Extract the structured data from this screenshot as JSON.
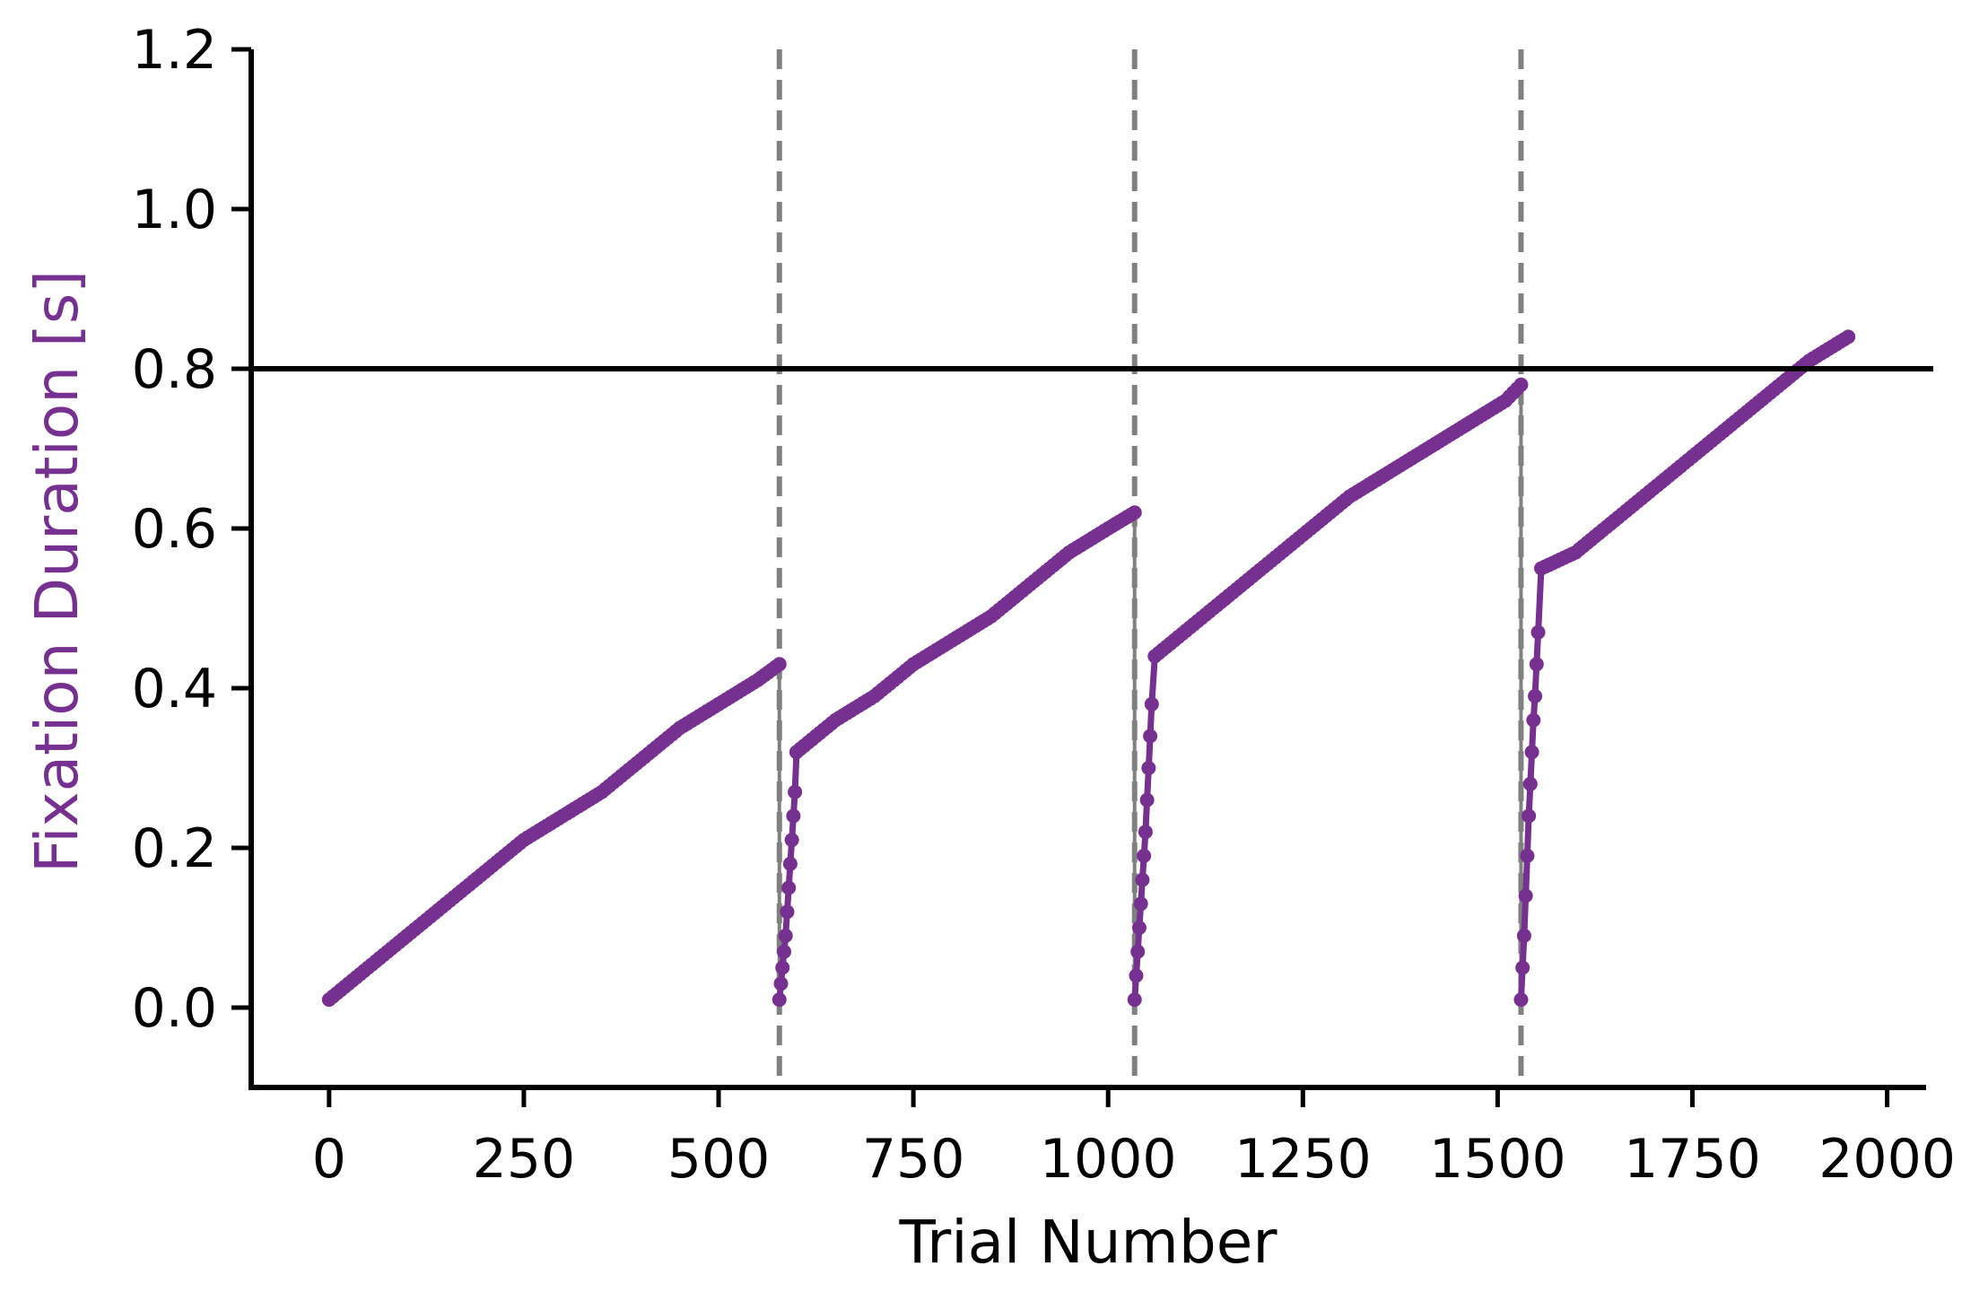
{
  "chart_data": {
    "type": "line",
    "xlabel": "Trial Number",
    "ylabel": "Fixation Duration [s]",
    "xlim": [
      -100,
      2050
    ],
    "ylim": [
      -0.1,
      1.2
    ],
    "xticks": [
      0,
      250,
      500,
      750,
      1000,
      1250,
      1500,
      1750,
      2000
    ],
    "yticks": [
      0.0,
      0.2,
      0.4,
      0.6,
      0.8,
      1.0,
      1.2
    ],
    "x_tick_labels": [
      "0",
      "250",
      "500",
      "750",
      "1000",
      "1250",
      "1500",
      "1750",
      "2000"
    ],
    "y_tick_labels": [
      "0.0",
      "0.2",
      "0.4",
      "0.6",
      "0.8",
      "1.0",
      "1.2"
    ],
    "grid": false,
    "threshold_line": {
      "y": 0.8,
      "color": "#000000"
    },
    "block_boundaries": {
      "x": [
        578,
        1034,
        1530
      ],
      "color": "#808080",
      "style": "dashed"
    },
    "series": [
      {
        "color": "#76308f",
        "segments": [
          {
            "x": [
              0,
              50,
              100,
              150,
              200,
              250,
              300,
              350,
              400,
              450,
              500,
              550,
              578
            ],
            "y": [
              0.01,
              0.05,
              0.09,
              0.13,
              0.17,
              0.21,
              0.24,
              0.27,
              0.31,
              0.35,
              0.38,
              0.41,
              0.43
            ]
          },
          {
            "x": [
              578,
              580,
              582,
              584,
              586,
              588,
              590,
              592,
              594,
              596,
              598,
              600,
              650,
              700,
              750,
              800,
              850,
              900,
              950,
              1000,
              1034
            ],
            "y": [
              0.01,
              0.03,
              0.05,
              0.07,
              0.09,
              0.12,
              0.15,
              0.18,
              0.21,
              0.24,
              0.27,
              0.32,
              0.36,
              0.39,
              0.43,
              0.46,
              0.49,
              0.53,
              0.57,
              0.6,
              0.62
            ]
          },
          {
            "x": [
              1034,
              1036,
              1038,
              1040,
              1042,
              1044,
              1046,
              1048,
              1050,
              1052,
              1054,
              1056,
              1060,
              1110,
              1160,
              1210,
              1260,
              1310,
              1360,
              1410,
              1460,
              1510,
              1530
            ],
            "y": [
              0.01,
              0.04,
              0.07,
              0.1,
              0.13,
              0.16,
              0.19,
              0.22,
              0.26,
              0.3,
              0.34,
              0.38,
              0.44,
              0.48,
              0.52,
              0.56,
              0.6,
              0.64,
              0.67,
              0.7,
              0.73,
              0.76,
              0.78
            ]
          },
          {
            "x": [
              1530,
              1532,
              1534,
              1536,
              1538,
              1540,
              1542,
              1544,
              1546,
              1548,
              1550,
              1552,
              1556,
              1600,
              1650,
              1700,
              1750,
              1800,
              1850,
              1900,
              1950
            ],
            "y": [
              0.01,
              0.05,
              0.09,
              0.14,
              0.19,
              0.24,
              0.28,
              0.32,
              0.36,
              0.39,
              0.43,
              0.47,
              0.55,
              0.57,
              0.61,
              0.65,
              0.69,
              0.73,
              0.77,
              0.81,
              0.84
            ]
          }
        ]
      }
    ]
  },
  "colors": {
    "series": "#76308f",
    "ylabel": "#76308f",
    "boundary": "#808080",
    "axis": "#000000"
  }
}
